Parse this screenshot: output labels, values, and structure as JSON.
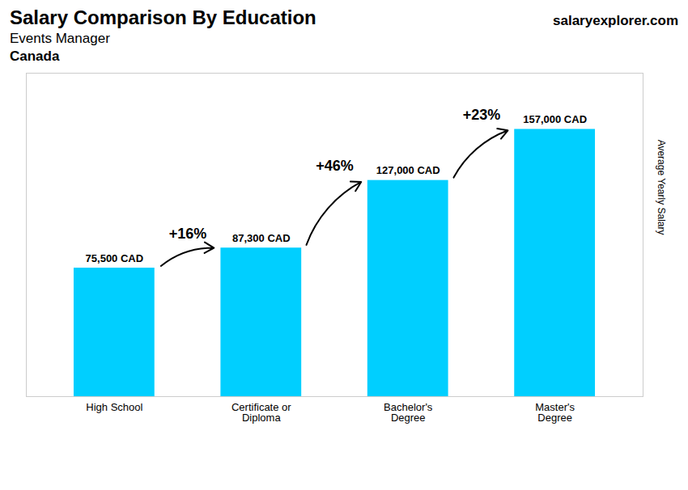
{
  "chart_data": {
    "type": "bar",
    "title": "Salary Comparison By Education",
    "subtitle": "Events Manager",
    "ylabel": "Average Yearly Salary",
    "categories": [
      "High School",
      "Certificate or\nDiploma",
      "Bachelor's\nDegree",
      "Master's\nDegree"
    ],
    "values": [
      75500,
      87300,
      127000,
      157000
    ],
    "value_labels": [
      "75,500 CAD",
      "87,300 CAD",
      "127,000 CAD",
      "157,000 CAD"
    ],
    "data_labels": true,
    "color": "#00cfff",
    "ylim": [
      0,
      190000
    ],
    "yticks": [],
    "grid": false,
    "tick_labels": "x",
    "annotations": [
      {
        "text": "Canada"
      },
      {
        "text": "salaryexplorer.com"
      },
      {
        "text": "+16%",
        "from": "High School",
        "to": "Certificate or\nDiploma"
      },
      {
        "text": "+46%",
        "from": "Certificate or\nDiploma",
        "to": "Bachelor's\nDegree"
      },
      {
        "text": "+23%",
        "from": "Bachelor's\nDegree",
        "to": "Master's\nDegree"
      }
    ]
  }
}
